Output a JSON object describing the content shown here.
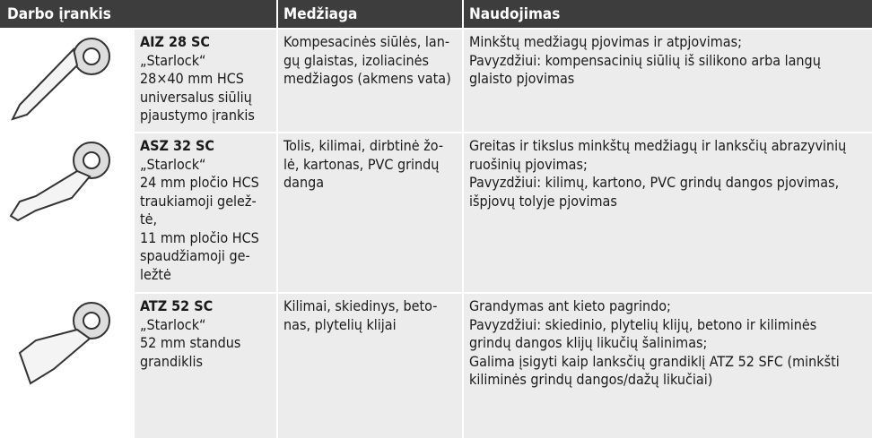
{
  "header": {
    "tool": "Darbo įrankis",
    "material": "Medžiaga",
    "usage": "Naudojimas"
  },
  "rows": [
    {
      "name": "AIZ 28 SC",
      "description": [
        "„Starlock“",
        "28×40 mm HCS",
        "universalus siūlių",
        "pjaustymo įrankis"
      ],
      "material": [
        "Kompesacinės siūlės, lan-",
        "gų glaistas, izoliacinės",
        "medžiagos (akmens vata)"
      ],
      "usage": [
        "Minkštų medžiagų pjovimas ir atpjovimas;",
        "Pavyzdžiui: kompensacinių siūlių iš silikono arba langų",
        "glaisto pjovimas"
      ]
    },
    {
      "name": "ASZ 32 SC",
      "description": [
        "„Starlock“",
        "24 mm pločio HCS",
        "traukiamoji gelež-",
        "tė,",
        "11 mm pločio HCS",
        "spaudžiamoji ge-",
        "ležtė"
      ],
      "material": [
        "Tolis, kilimai, dirbtinė žo-",
        "lė, kartonas, PVC grindų",
        "danga"
      ],
      "usage": [
        "Greitas ir tikslus minkštų medžiagų ir lanksčių abrazyvinių",
        "ruošinių pjovimas;",
        "Pavyzdžiui: kilimų, kartono, PVC grindų dangos pjovimas,",
        "išpjovų tolyje pjovimas"
      ]
    },
    {
      "name": "ATZ 52 SC",
      "description": [
        "„Starlock“",
        "52 mm standus",
        "grandiklis"
      ],
      "material": [
        "Kilimai, skiedinys, beto-",
        "nas, plytelių klijai"
      ],
      "usage": [
        "Grandymas ant kieto pagrindo;",
        "Pavyzdžiui: skiedinio, plytelių klijų, betono ir kiliminės",
        "grindų dangos klijų likučių šalinimas;",
        "Galima įsigyti kaip lanksčių grandiklį ATZ 52 SFC (minkšti",
        "kiliminės grindų dangos/dažų likučiai)"
      ]
    }
  ]
}
